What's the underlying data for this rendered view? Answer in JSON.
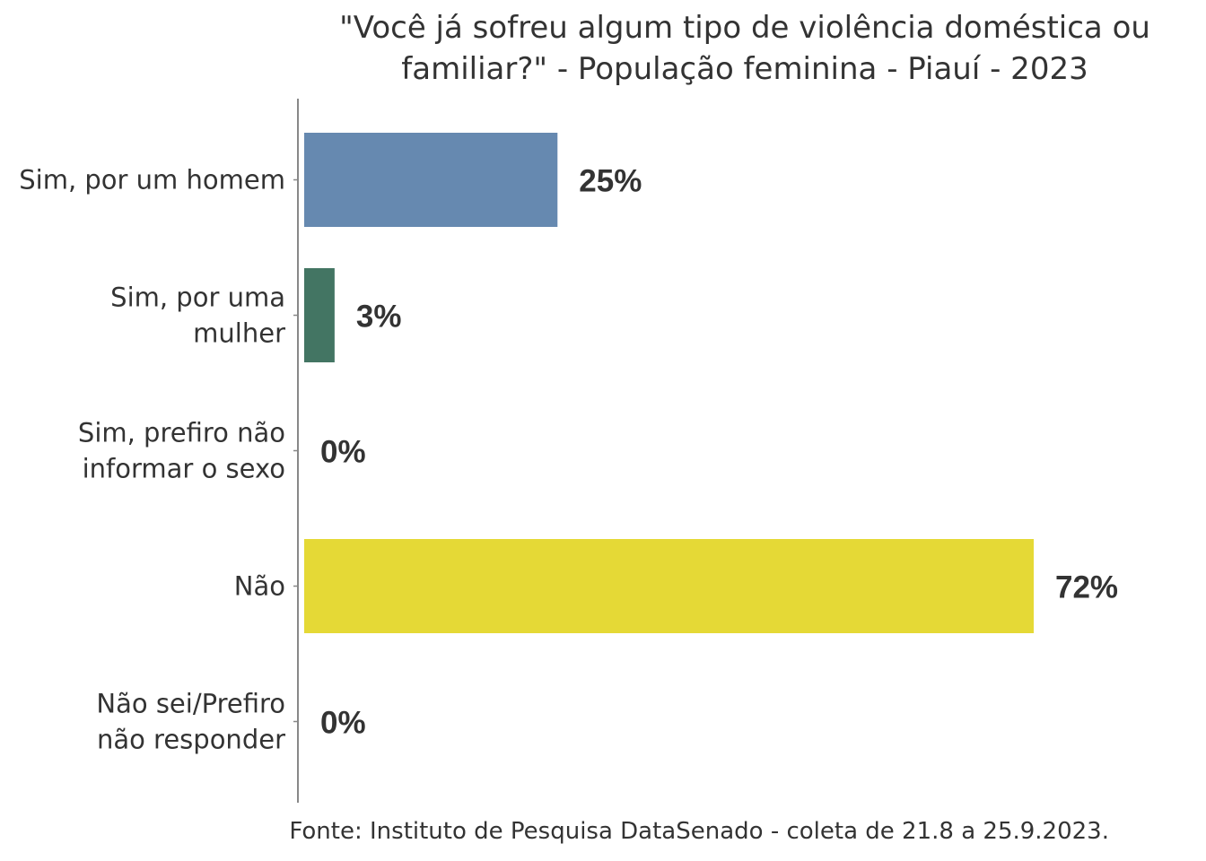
{
  "chart_data": {
    "type": "bar",
    "orientation": "horizontal",
    "title": [
      "\"Você já sofreu algum tipo de violência doméstica ou",
      "familiar?\" - População feminina - Piauí - 2023"
    ],
    "categories": [
      [
        "Sim, por um homem"
      ],
      [
        "Sim, por uma",
        "mulher"
      ],
      [
        "Sim, prefiro não",
        "informar o sexo"
      ],
      [
        "Não"
      ],
      [
        "Não sei/Prefiro",
        "não responder"
      ]
    ],
    "values": [
      25,
      3,
      0,
      72,
      0
    ],
    "value_labels": [
      "25%",
      "3%",
      "0%",
      "72%",
      "0%"
    ],
    "colors": [
      "#6689b0",
      "#437563",
      "#6689b0",
      "#e5d936",
      "#6689b0"
    ],
    "xlabel": "",
    "ylabel": "",
    "xlim": [
      0,
      72
    ],
    "grid": false,
    "legend": "none",
    "caption": "Fonte: Instituto de Pesquisa DataSenado - coleta de 21.8 a 25.9.2023."
  }
}
